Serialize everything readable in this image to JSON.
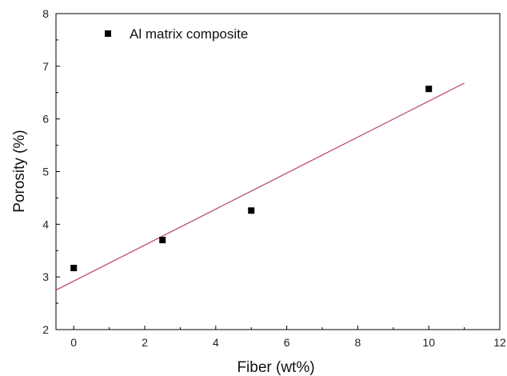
{
  "chart_data": {
    "type": "scatter",
    "title": "",
    "xlabel": "Fiber (wt%)",
    "ylabel": "Porosity (%)",
    "xlim": [
      -0.5,
      12
    ],
    "ylim": [
      2,
      8
    ],
    "xticks": [
      0,
      2,
      4,
      6,
      8,
      10,
      12
    ],
    "yticks": [
      2,
      3,
      4,
      5,
      6,
      7,
      8
    ],
    "grid": false,
    "legend_position": "top-left",
    "series": [
      {
        "name": "Al matrix composite",
        "marker": "square",
        "color": "#000000",
        "x": [
          0,
          2.5,
          5,
          10
        ],
        "y": [
          3.17,
          3.7,
          4.26,
          6.57
        ]
      }
    ],
    "fit_line": {
      "color": "#c0506a",
      "x": [
        -0.5,
        11
      ],
      "y": [
        2.75,
        6.68
      ]
    }
  }
}
